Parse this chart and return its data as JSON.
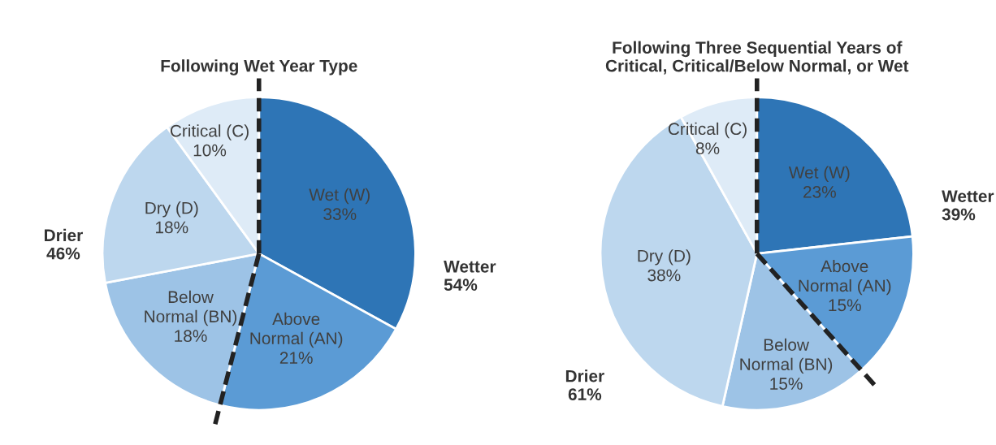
{
  "chart_data": [
    {
      "type": "pie",
      "title": "Following Wet Year Type",
      "categories": [
        "Wet (W)",
        "Above\nNormal (AN)",
        "Below\nNormal (BN)",
        "Dry (D)",
        "Critical (C)"
      ],
      "values": [
        33,
        21,
        18,
        18,
        10
      ],
      "value_labels": [
        "33%",
        "21%",
        "18%",
        "18%",
        "10%"
      ],
      "colors": [
        "#2e75b6",
        "#5b9bd5",
        "#9dc3e6",
        "#bdd7ee",
        "#deebf7"
      ],
      "annotations": [
        "Wetter\n54%",
        "Drier\n46%"
      ],
      "legend": false
    },
    {
      "type": "pie",
      "title": "Following Three Sequential Years of\nCritical, Critical/Below Normal, or Wet",
      "categories": [
        "Wet (W)",
        "Above\nNormal (AN)",
        "Below\nNormal (BN)",
        "Dry (D)",
        "Critical (C)"
      ],
      "values": [
        23,
        15,
        15,
        38,
        8
      ],
      "value_labels": [
        "23%",
        "15%",
        "15%",
        "38%",
        "8%"
      ],
      "colors": [
        "#2e75b6",
        "#5b9bd5",
        "#9dc3e6",
        "#bdd7ee",
        "#deebf7"
      ],
      "annotations": [
        "Wetter\n39%",
        "Drier\n61%"
      ],
      "legend": false
    }
  ]
}
